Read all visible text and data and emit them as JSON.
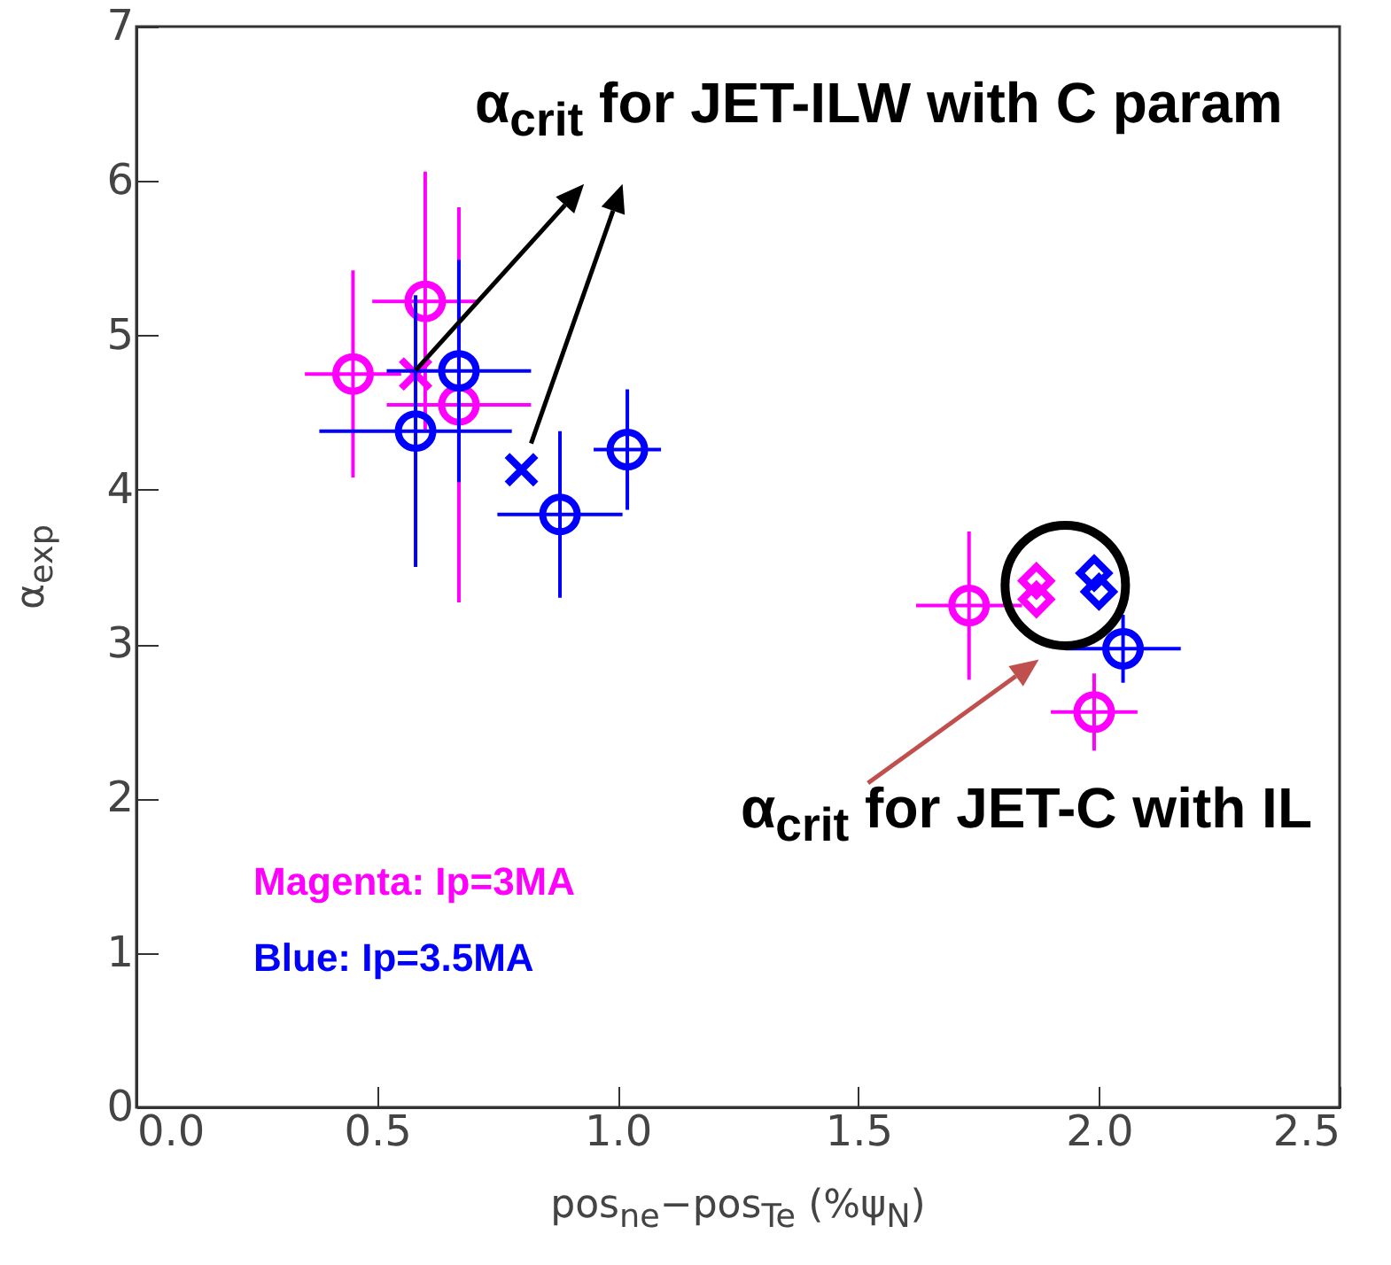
{
  "chart_data": {
    "type": "scatter",
    "xlabel": "pos$_{ne}$−pos$_{Te}$ (%ψ$_{N}$)",
    "ylabel": "α$_{exp}$",
    "xlim": [
      0,
      2.5
    ],
    "ylim": [
      0,
      7
    ],
    "xticks": [
      {
        "value": 0,
        "label": "0.0"
      },
      {
        "value": 0.5,
        "label": "0.5"
      },
      {
        "value": 1,
        "label": "1.0"
      },
      {
        "value": 1.5,
        "label": "1.5"
      },
      {
        "value": 2,
        "label": "2.0"
      },
      {
        "value": 2.5,
        "label": "2.5"
      }
    ],
    "yticks": [
      0,
      1,
      2,
      3,
      4,
      5,
      6,
      7
    ],
    "grid": false,
    "annotations": [
      {
        "text": "α$_{crit}$ for JET-ILW with C param",
        "x": 0.58,
        "y": 4.75
      },
      "α$_{crit}$ for JET-C with IL",
      "Magenta: Ip=3MA",
      "Blue: Ip=3.5MA"
    ],
    "series": [
      {
        "color": "#ff00ff",
        "marker": "circle",
        "x": [
          0.45,
          0.6,
          0.67
        ],
        "values": [
          4.75,
          5.22,
          4.55
        ],
        "xerrors": [
          0.1,
          0.11,
          0.15
        ],
        "errors": [
          0.67,
          0.84,
          1.28
        ]
      },
      {
        "color": "#ff00ff",
        "marker": "cross",
        "x": [
          0.58
        ],
        "values": [
          4.75
        ]
      },
      {
        "color": "#ff00ff",
        "marker": "circle",
        "x": [
          1.73,
          1.99
        ],
        "values": [
          3.25,
          2.56
        ],
        "xerrors": [
          0.11,
          0.09
        ],
        "errors": [
          0.48,
          0.25
        ]
      },
      {
        "color": "#ff00ff",
        "marker": "diamond",
        "x": [
          1.87,
          1.87
        ],
        "values": [
          3.41,
          3.29
        ]
      },
      {
        "color": "#0000ff",
        "marker": "circle",
        "x": [
          0.58,
          0.67,
          0.88,
          1.02
        ],
        "values": [
          4.38,
          4.77,
          3.84,
          4.26
        ],
        "xerrors": [
          0.2,
          0.15,
          0.13,
          0.07
        ],
        "errors": [
          0.88,
          0.72,
          0.54,
          0.39
        ]
      },
      {
        "color": "#0000ff",
        "marker": "cross",
        "x": [
          0.8
        ],
        "values": [
          4.13
        ]
      },
      {
        "color": "#0000ff",
        "marker": "circle",
        "x": [
          2.05
        ],
        "values": [
          2.97
        ],
        "xerrors": [
          0.12
        ],
        "errors": [
          0.22
        ]
      },
      {
        "color": "#0000ff",
        "marker": "diamond",
        "x": [
          1.99,
          2.0
        ],
        "values": [
          3.46,
          3.34
        ]
      }
    ]
  }
}
